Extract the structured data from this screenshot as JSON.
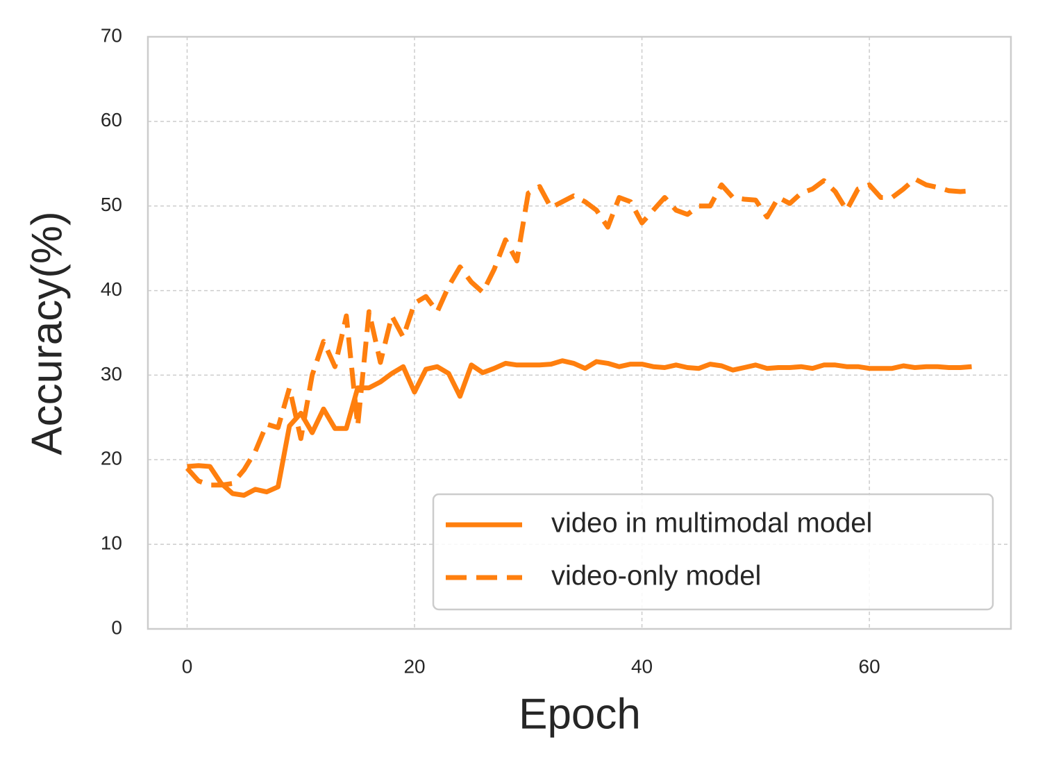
{
  "chart_data": {
    "type": "line",
    "x_label": "Epoch",
    "y_label": "Accuracy(%)",
    "x": [
      0,
      1,
      2,
      3,
      4,
      5,
      6,
      7,
      8,
      9,
      10,
      11,
      12,
      13,
      14,
      15,
      16,
      17,
      18,
      19,
      20,
      21,
      22,
      23,
      24,
      25,
      26,
      27,
      28,
      29,
      30,
      31,
      32,
      33,
      34,
      35,
      36,
      37,
      38,
      39,
      40,
      41,
      42,
      43,
      44,
      45,
      46,
      47,
      48,
      49,
      50,
      51,
      52,
      53,
      54,
      55,
      56,
      57,
      58,
      59,
      60,
      61,
      62,
      63,
      64,
      65,
      66,
      67,
      68,
      69
    ],
    "series": [
      {
        "name": "video in multimodal model",
        "color": "#ff7f0e",
        "linestyle": "solid",
        "values": [
          19.2,
          19.3,
          19.2,
          17.2,
          16,
          15.8,
          16.5,
          16.2,
          16.8,
          24,
          25.5,
          23.2,
          26,
          23.7,
          23.7,
          28.5,
          28.5,
          29.2,
          30.2,
          31,
          28,
          30.7,
          31,
          30.2,
          27.5,
          31.2,
          30.3,
          30.8,
          31.4,
          31.2,
          31.2,
          31.2,
          31.3,
          31.7,
          31.4,
          30.8,
          31.6,
          31.4,
          31,
          31.3,
          31.3,
          31,
          30.9,
          31.2,
          30.9,
          30.8,
          31.3,
          31.1,
          30.6,
          30.9,
          31.2,
          30.8,
          30.9,
          30.9,
          31,
          30.8,
          31.2,
          31.2,
          31,
          31,
          30.8,
          30.8,
          30.8,
          31.1,
          30.9,
          31,
          31,
          30.9,
          30.9,
          31
        ]
      },
      {
        "name": "video-only model",
        "color": "#ff7f0e",
        "linestyle": "dashed",
        "values": [
          19,
          17.5,
          17,
          17,
          17.2,
          18.8,
          21,
          24.2,
          23.8,
          28.5,
          22.5,
          30,
          34,
          31,
          37,
          24,
          37.5,
          31.5,
          37,
          34.5,
          38.5,
          39.3,
          37.5,
          40.5,
          42.8,
          41,
          39.8,
          42.5,
          46,
          43.5,
          51.5,
          52.3,
          49.8,
          50.5,
          51.2,
          50.5,
          49.5,
          47.5,
          51,
          50.5,
          48,
          49.5,
          51,
          49.5,
          49,
          50,
          50,
          52.5,
          51,
          50.8,
          50.7,
          48.7,
          51,
          50.3,
          51.5,
          52,
          53,
          51.7,
          49.5,
          52,
          52.5,
          51,
          51,
          52,
          53.2,
          52.5,
          52.2,
          51.8,
          51.7,
          51.8
        ]
      }
    ],
    "xlim": [
      -3.45,
      72.45
    ],
    "xticks": [
      0,
      20,
      40,
      60
    ],
    "ylim": [
      0,
      70
    ],
    "yticks": [
      0,
      10,
      20,
      30,
      40,
      50,
      60,
      70
    ],
    "grid": true,
    "legend": "lower right"
  }
}
